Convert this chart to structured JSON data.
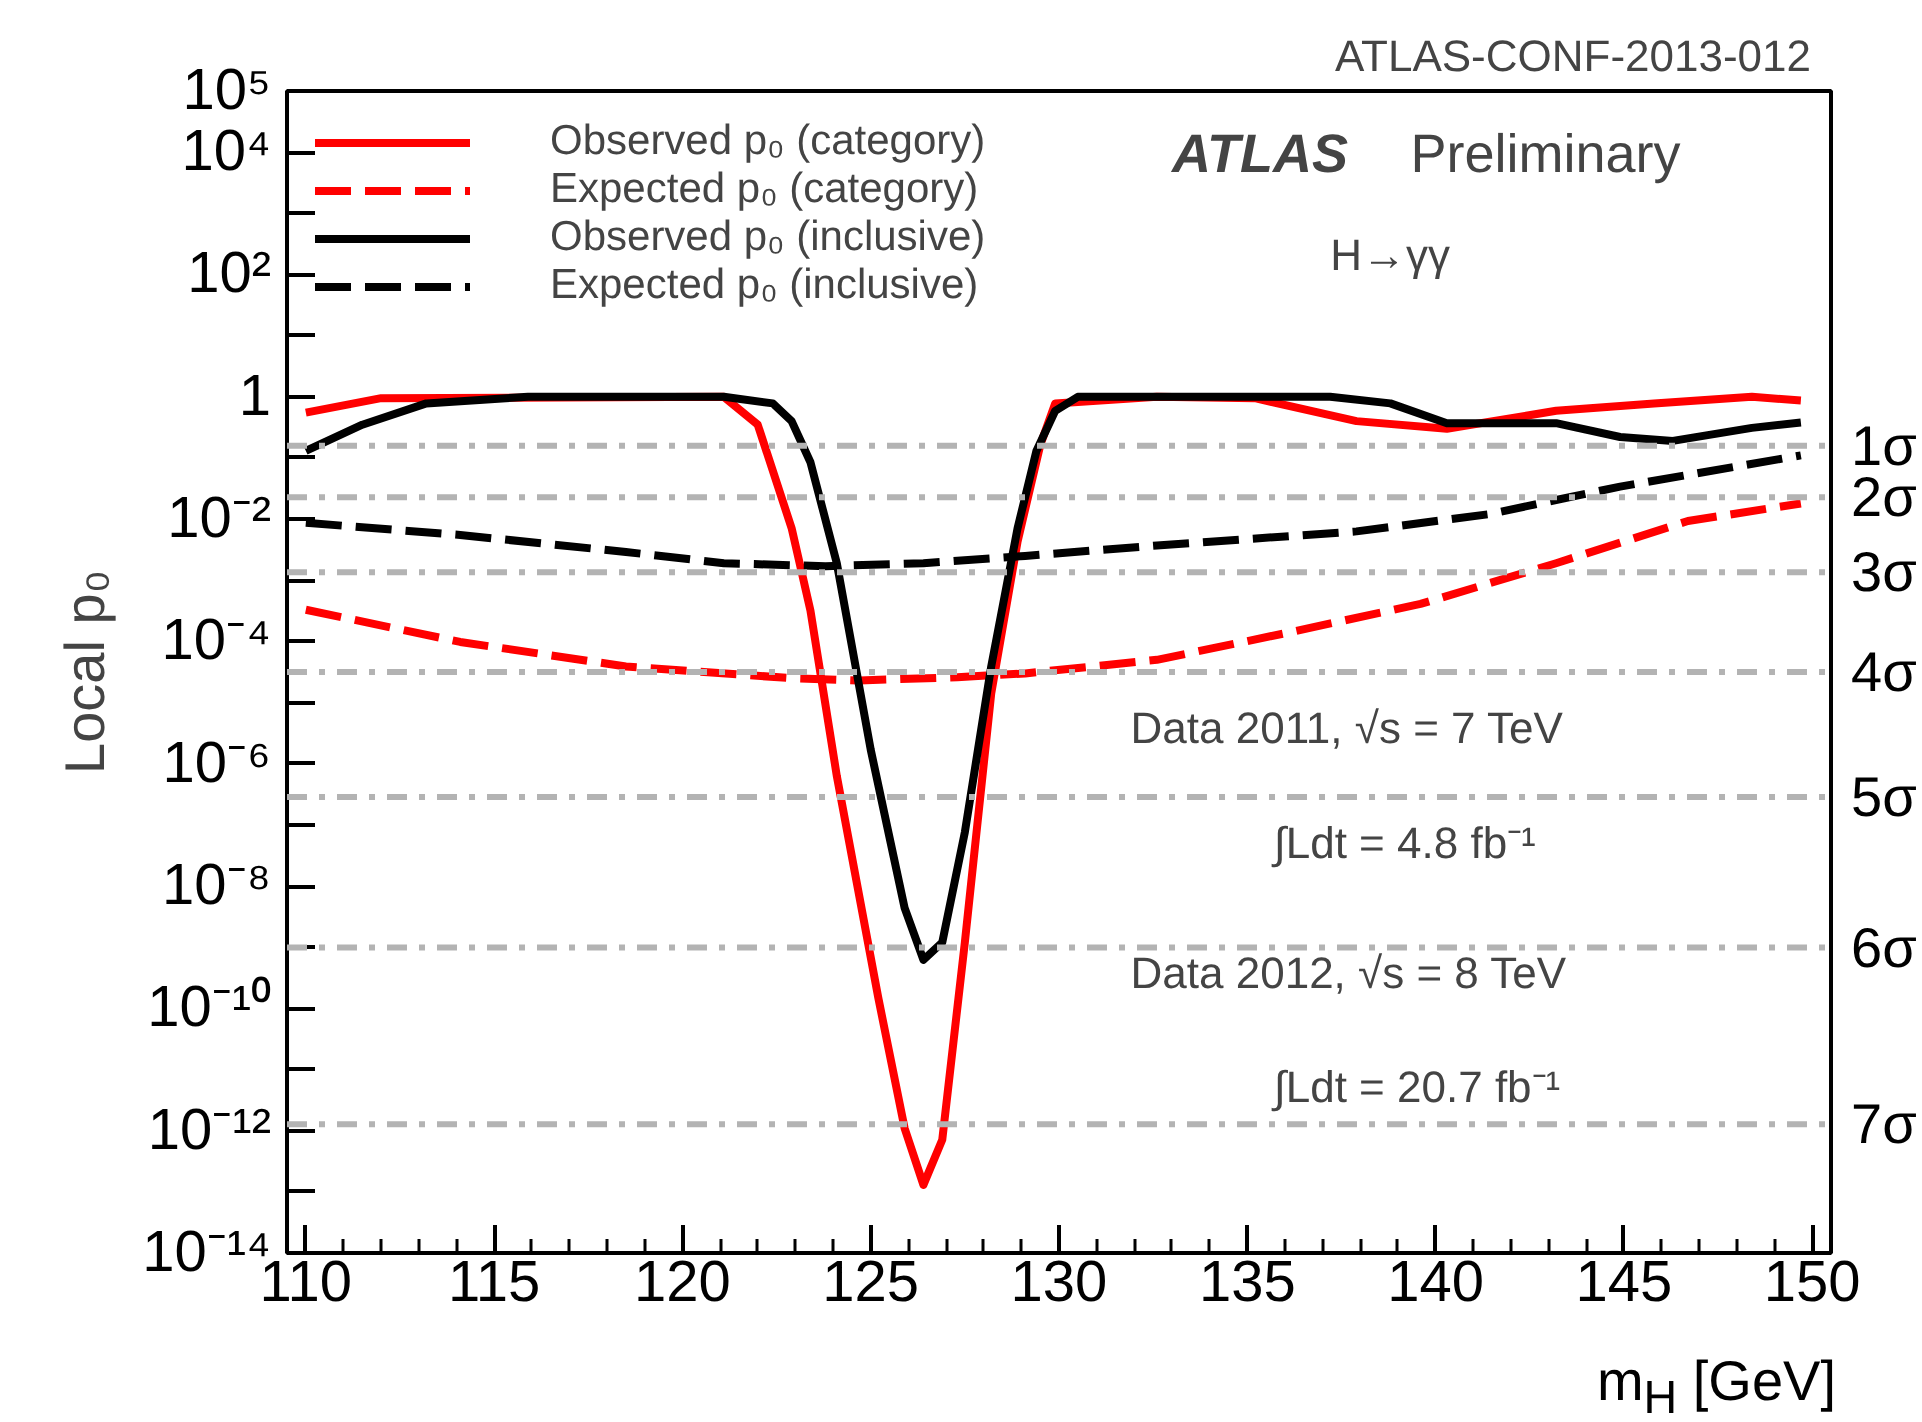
{
  "chart_data": {
    "type": "line",
    "xlabel": "m$_{H}$ [GeV]",
    "ylabel": "Local p₀",
    "log": "y",
    "grid": false,
    "legend": "top left",
    "marker": "none",
    "xlim": [
      109.5,
      150.5
    ],
    "ylim": [
      1e-14,
      100000
    ],
    "xticks": [
      110,
      115,
      120,
      125,
      130,
      135,
      140,
      145,
      150
    ],
    "yticks": [
      {
        "value": 100000,
        "label": "10⁵"
      },
      {
        "value": 10000,
        "label": "10⁴"
      },
      {
        "value": 1000,
        "label": null
      },
      {
        "value": 100,
        "label": "10²"
      },
      {
        "value": 10,
        "label": null
      },
      1,
      {
        "value": 0.1,
        "label": null
      },
      {
        "value": 0.01,
        "label": "10⁻²"
      },
      {
        "value": 0.001,
        "label": null
      },
      {
        "value": 0.0001,
        "label": "10⁻⁴"
      },
      {
        "value": 1e-05,
        "label": null
      },
      {
        "value": 1e-06,
        "label": "10⁻⁶"
      },
      {
        "value": 1e-07,
        "label": null
      },
      {
        "value": 1e-08,
        "label": "10⁻⁸"
      },
      {
        "value": 1e-09,
        "label": null
      },
      {
        "value": 1e-10,
        "label": "10⁻¹⁰"
      },
      {
        "value": 1e-11,
        "label": null
      },
      {
        "value": 1e-12,
        "label": "10⁻¹²"
      },
      {
        "value": 1e-13,
        "label": null
      },
      {
        "value": 1e-14,
        "label": "10⁻¹⁴"
      }
    ],
    "series": [
      {
        "name": "Observed p₀ (category)",
        "color": "#ff0000",
        "line_style": "solid",
        "x": [
          110.0,
          112.0,
          121.1,
          122.0,
          122.9,
          123.4,
          124.1,
          125.2,
          125.9,
          126.4,
          126.9,
          127.5,
          128.2,
          128.9,
          129.5,
          129.9,
          132.6,
          135.2,
          137.9,
          140.3,
          143.2,
          145.8,
          148.4,
          149.7
        ],
        "values": [
          0.55,
          0.95,
          1,
          0.35,
          0.0071,
          0.00032,
          6.3e-07,
          1.5e-10,
          1.1e-12,
          1.3e-13,
          7.1e-13,
          1.2e-09,
          1.4e-05,
          0.0043,
          0.16,
          0.78,
          1,
          0.95,
          0.4,
          0.3,
          0.59,
          0.78,
          1,
          0.87
        ]
      },
      {
        "name": "Expected p₀ (category)",
        "color": "#ff0000",
        "line_style": "dashed",
        "x": [
          110.0,
          114.1,
          118.5,
          122.9,
          124.7,
          127.3,
          129.1,
          132.6,
          136.1,
          139.6,
          143.2,
          146.7,
          149.7
        ],
        "values": [
          0.00033,
          9.8e-05,
          3.9e-05,
          2.5e-05,
          2.3e-05,
          2.6e-05,
          3e-05,
          5e-05,
          0.00014,
          0.00041,
          0.0019,
          0.0093,
          0.018
        ]
      },
      {
        "name": "Observed p₀ (inclusive)",
        "color": "#000000",
        "line_style": "solid",
        "x": [
          110.0,
          111.5,
          113.2,
          115.9,
          121.1,
          122.4,
          122.9,
          123.4,
          124.1,
          125.0,
          125.9,
          126.4,
          126.9,
          127.5,
          128.2,
          128.9,
          129.4,
          129.9,
          130.5,
          137.2,
          138.8,
          140.3,
          143.2,
          144.9,
          146.3,
          148.4,
          149.7
        ],
        "values": [
          0.13,
          0.35,
          0.78,
          1,
          1,
          0.78,
          0.4,
          0.085,
          0.0019,
          1.7e-06,
          4.4e-09,
          6.2e-10,
          1.2e-09,
          7.6e-08,
          3.9e-05,
          0.0071,
          0.13,
          0.59,
          1,
          1,
          0.78,
          0.37,
          0.37,
          0.22,
          0.19,
          0.31,
          0.38
        ]
      },
      {
        "name": "Expected p₀ (inclusive)",
        "color": "#000000",
        "line_style": "dashed",
        "x": [
          110.0,
          114.1,
          118.5,
          121.1,
          123.8,
          126.4,
          129.1,
          132.6,
          137.9,
          141.4,
          144.9,
          149.7
        ],
        "values": [
          0.0087,
          0.0055,
          0.0029,
          0.0019,
          0.0017,
          0.0019,
          0.0025,
          0.0037,
          0.0063,
          0.012,
          0.034,
          0.11
        ]
      }
    ],
    "ref_lines": [
      {
        "axis": "y",
        "value": 0.1587,
        "label": "1σ",
        "color": "#b3b3b3",
        "line_style": "dashdot"
      },
      {
        "axis": "y",
        "value": 0.02275,
        "label": "2σ",
        "color": "#b3b3b3",
        "line_style": "dashdot"
      },
      {
        "axis": "y",
        "value": 0.00135,
        "label": "3σ",
        "color": "#b3b3b3",
        "line_style": "dashdot"
      },
      {
        "axis": "y",
        "value": 3.17e-05,
        "label": "4σ",
        "color": "#b3b3b3",
        "line_style": "dashdot"
      },
      {
        "axis": "y",
        "value": 2.87e-07,
        "label": "5σ",
        "color": "#b3b3b3",
        "line_style": "dashdot"
      },
      {
        "axis": "y",
        "value": 9.87e-10,
        "label": "6σ",
        "color": "#b3b3b3",
        "line_style": "dashdot"
      },
      {
        "axis": "y",
        "value": 1.28e-12,
        "label": "7σ",
        "color": "#b3b3b3",
        "line_style": "dashdot"
      }
    ],
    "annotations": [
      "ATLAS-CONF-2013-012",
      "ATLAS Preliminary",
      "H→γγ",
      "Data 2011,  √s = 7 TeV",
      "∫Ldt = 4.8 fb⁻¹",
      "Data 2012,  √s = 8 TeV",
      "∫Ldt = 20.7 fb⁻¹"
    ]
  }
}
